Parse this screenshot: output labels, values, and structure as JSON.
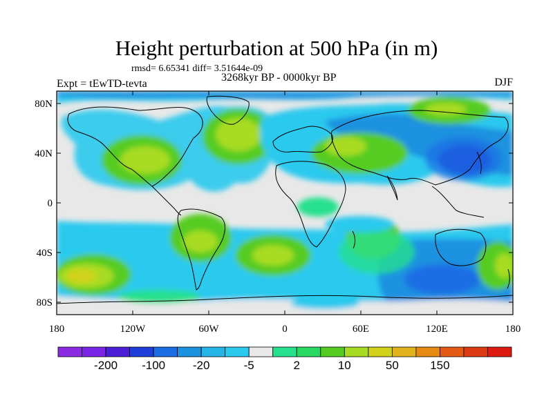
{
  "figure": {
    "title": "Height perturbation at 500 hPa (in m)",
    "stats": "rmsd= 6.65341 diff= 3.51644e-09",
    "period": "3268kyr BP - 0000kyr BP",
    "experiment": "Expt = tEwTD-tevta",
    "season": "DJF"
  },
  "axes": {
    "lat_labels": [
      "80N",
      "40N",
      "0",
      "40S",
      "80S"
    ],
    "lat_values": [
      80,
      40,
      0,
      -40,
      -80
    ],
    "lon_labels": [
      "180",
      "120W",
      "60W",
      "0",
      "60E",
      "120E",
      "180"
    ],
    "lon_values": [
      -180,
      -120,
      -60,
      0,
      60,
      120,
      180
    ],
    "lon_range": [
      -180,
      180
    ],
    "lat_range": [
      -90,
      90
    ]
  },
  "colorbar": {
    "colors": [
      "#8a2be2",
      "#7b25e8",
      "#4b1fd6",
      "#1f3fd8",
      "#1d6ee4",
      "#1a92e0",
      "#24b5e6",
      "#2ac9ee",
      "#e8e8e8",
      "#27e08e",
      "#29d860",
      "#56cc22",
      "#a8dc22",
      "#d2d21c",
      "#e0b31c",
      "#e68a14",
      "#e45a14",
      "#dc3a12",
      "#dc1a10"
    ],
    "labels": [
      "-200",
      "-100",
      "-20",
      "-5",
      "2",
      "10",
      "50",
      "150"
    ],
    "label_slots": [
      1,
      3,
      5,
      7,
      9,
      11,
      13,
      15
    ]
  },
  "field_colors": {
    "neutral": "#e8e8e8",
    "cyan": "#2ac9ee",
    "lightblue": "#1a92e0",
    "blue": "#1d6ee4",
    "deepblue": "#1f3fd8",
    "green": "#27e08e",
    "lime": "#56cc22",
    "yellow": "#a8dc22",
    "gold": "#d2d21c"
  }
}
